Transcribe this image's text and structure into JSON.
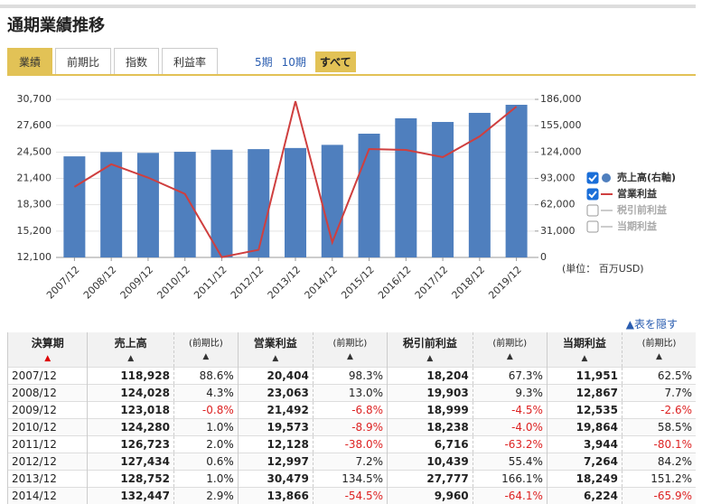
{
  "header": {
    "title": "通期業績推移"
  },
  "tabs": [
    "業績",
    "前期比",
    "指数",
    "利益率"
  ],
  "periods": [
    "5期",
    "10期",
    "すべて"
  ],
  "chart_data": {
    "type": "combo",
    "categories": [
      "2007/12",
      "2008/12",
      "2009/12",
      "2010/12",
      "2011/12",
      "2012/12",
      "2013/12",
      "2014/12",
      "2015/12",
      "2016/12",
      "2017/12",
      "2018/12",
      "2019/12"
    ],
    "series": [
      {
        "name": "売上高(右軸)",
        "type": "bar",
        "axis": "y2",
        "color": "#4f7fbe",
        "values": [
          118928,
          124028,
          123018,
          124280,
          126723,
          127434,
          128752,
          132447,
          145600,
          163700,
          159400,
          170100,
          179600
        ]
      },
      {
        "name": "営業利益",
        "type": "line",
        "color": "#cf3f3f",
        "values": [
          20404,
          23063,
          21492,
          19573,
          12128,
          12997,
          30479,
          13866,
          24850,
          24750,
          23900,
          26340,
          29850
        ]
      }
    ],
    "inactive_legend": [
      "税引前利益",
      "当期利益"
    ],
    "ylim": [
      12100,
      30700
    ],
    "yticks": [
      {
        "value": 12100,
        "label": "12,100"
      },
      {
        "value": 15200,
        "label": "15,200"
      },
      {
        "value": 18300,
        "label": "18,300"
      },
      {
        "value": 21400,
        "label": "21,400"
      },
      {
        "value": 24500,
        "label": "24,500"
      },
      {
        "value": 27600,
        "label": "27,600"
      },
      {
        "value": 30700,
        "label": "30,700"
      }
    ],
    "y2lim": [
      0,
      186000
    ],
    "y2ticks": [
      0,
      {
        "value": 31000,
        "label": "31,000"
      },
      {
        "value": 62000,
        "label": "62,000"
      },
      {
        "value": 93000,
        "label": "93,000"
      },
      {
        "value": 124000,
        "label": "124,000"
      },
      {
        "value": 155000,
        "label": "155,000"
      },
      {
        "value": 186000,
        "label": "186,000"
      }
    ],
    "grid": true,
    "unit_label": "(単位： 百万USD)"
  },
  "table": {
    "toggle": "▲表を隠す",
    "columns": [
      "決算期",
      "売上高",
      "(前期比)",
      "営業利益",
      "(前期比)",
      "税引前利益",
      "(前期比)",
      "当期利益",
      "(前期比)"
    ],
    "rows": [
      [
        "2007/12",
        "118,928",
        "88.6%",
        "20,404",
        "98.3%",
        "18,204",
        "67.3%",
        "11,951",
        "62.5%"
      ],
      [
        "2008/12",
        "124,028",
        "4.3%",
        "23,063",
        "13.0%",
        "19,903",
        "9.3%",
        "12,867",
        "7.7%"
      ],
      [
        "2009/12",
        "123,018",
        "-0.8%",
        "21,492",
        "-6.8%",
        "18,999",
        "-4.5%",
        "12,535",
        "-2.6%"
      ],
      [
        "2010/12",
        "124,280",
        "1.0%",
        "19,573",
        "-8.9%",
        "18,238",
        "-4.0%",
        "19,864",
        "58.5%"
      ],
      [
        "2011/12",
        "126,723",
        "2.0%",
        "12,128",
        "-38.0%",
        "6,716",
        "-63.2%",
        "3,944",
        "-80.1%"
      ],
      [
        "2012/12",
        "127,434",
        "0.6%",
        "12,997",
        "7.2%",
        "10,439",
        "55.4%",
        "7,264",
        "84.2%"
      ],
      [
        "2013/12",
        "128,752",
        "1.0%",
        "30,479",
        "134.5%",
        "27,777",
        "166.1%",
        "18,249",
        "151.2%"
      ],
      [
        "2014/12",
        "132,447",
        "2.9%",
        "13,866",
        "-54.5%",
        "9,960",
        "-64.1%",
        "6,224",
        "-65.9%"
      ]
    ]
  }
}
